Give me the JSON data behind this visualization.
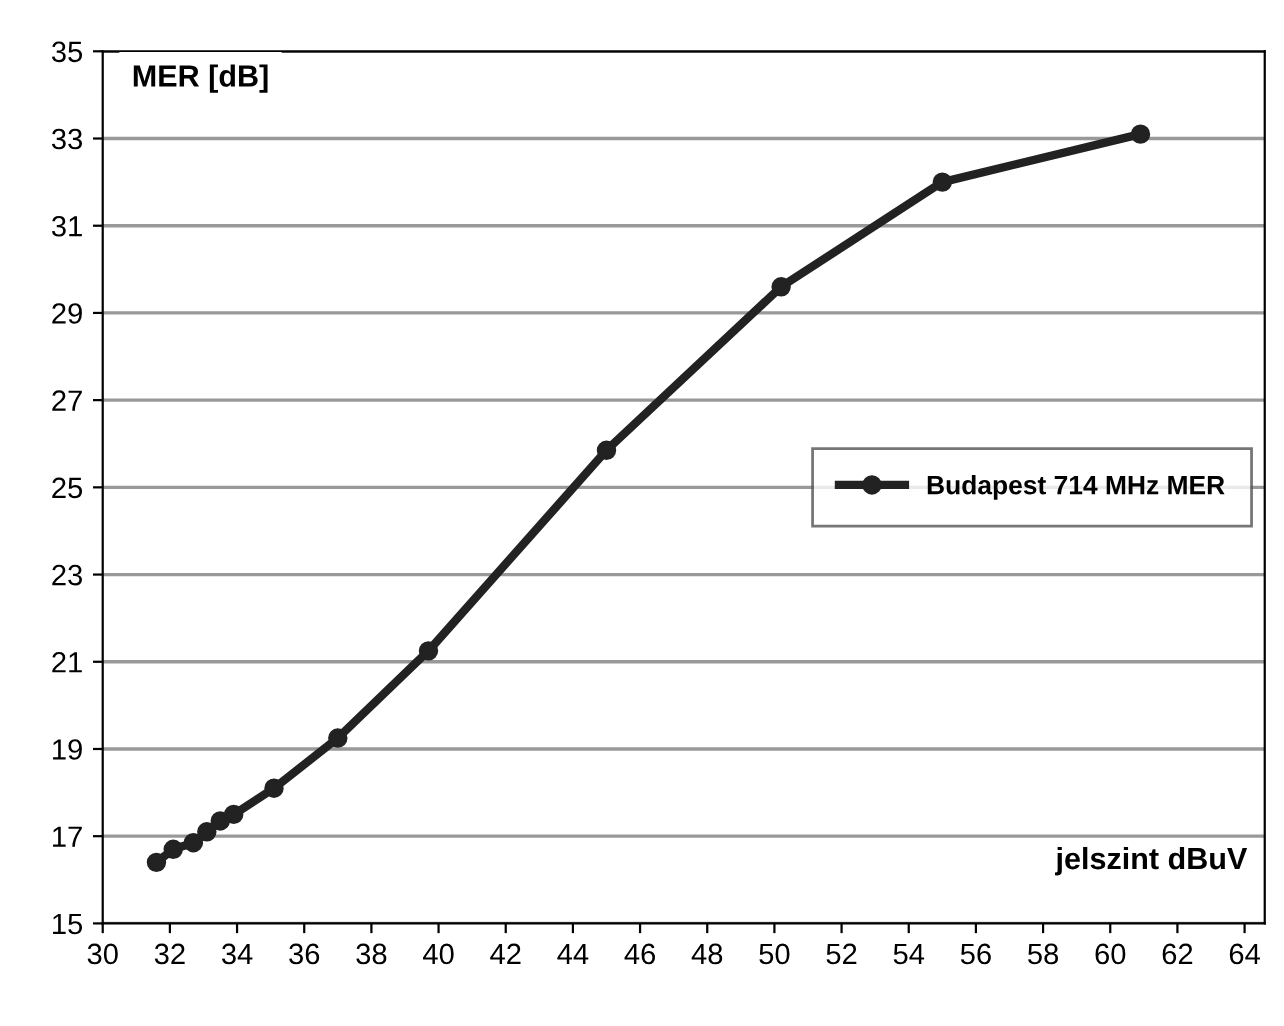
{
  "chart_data": {
    "type": "line",
    "xlabel": "jelszint dBuV",
    "ylabel": "MER [dB]",
    "x": [
      31.6,
      32.1,
      32.7,
      33.1,
      33.5,
      33.9,
      35.1,
      37.0,
      39.7,
      45.0,
      50.2,
      55.0,
      60.9
    ],
    "series": [
      {
        "name": "Budapest 714 MHz MER",
        "color": "#222222",
        "values": [
          16.4,
          16.7,
          16.85,
          17.1,
          17.35,
          17.5,
          18.1,
          19.25,
          21.25,
          25.85,
          29.6,
          32.0,
          33.1
        ]
      }
    ],
    "xlim": [
      30,
      64.6
    ],
    "xticks": [
      30,
      32,
      34,
      36,
      38,
      40,
      42,
      44,
      46,
      48,
      50,
      52,
      54,
      56,
      58,
      60,
      62,
      64
    ],
    "ylim": [
      15,
      35
    ],
    "yticks": [
      15,
      17,
      19,
      21,
      23,
      25,
      27,
      29,
      31,
      33,
      35
    ],
    "grid": "y",
    "legend": "center right",
    "marker": "circle",
    "line_style": "solid"
  }
}
